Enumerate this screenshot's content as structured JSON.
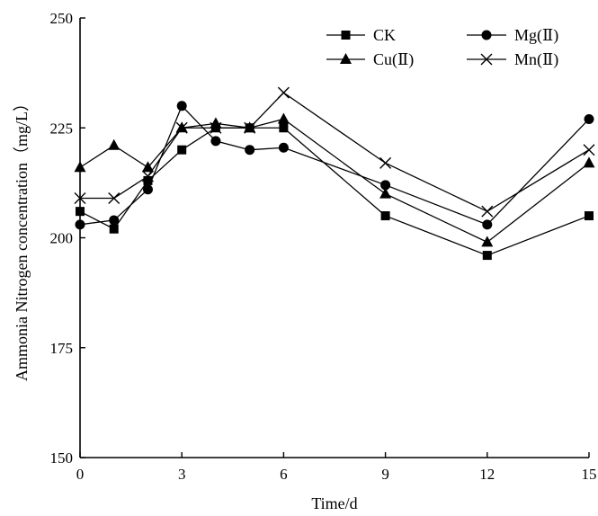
{
  "chart_data": {
    "type": "line",
    "title": "",
    "xlabel": "Time/d",
    "ylabel": "Ammonia Nitrogen concentration（mg/L）",
    "x": [
      0,
      1,
      2,
      3,
      4,
      5,
      6,
      9,
      12,
      15
    ],
    "xticks": [
      0,
      3,
      6,
      9,
      12,
      15
    ],
    "yticks": [
      150,
      175,
      200,
      225,
      250
    ],
    "xlim": [
      0,
      15
    ],
    "ylim": [
      150,
      250
    ],
    "grid": false,
    "legend_position": "top-right",
    "series": [
      {
        "name": "CK",
        "marker": "square",
        "values": [
          206,
          202,
          213,
          220,
          225,
          225,
          225,
          205,
          196,
          205
        ]
      },
      {
        "name": "Mg(Ⅱ)",
        "marker": "circle",
        "values": [
          203,
          204,
          211,
          230,
          222,
          220,
          220.5,
          212,
          203,
          227
        ]
      },
      {
        "name": "Cu(Ⅱ)",
        "marker": "triangle",
        "values": [
          216,
          221,
          216,
          225,
          226,
          225,
          227,
          210,
          199,
          217
        ]
      },
      {
        "name": "Mn(Ⅱ)",
        "marker": "x",
        "values": [
          209,
          209,
          214,
          225,
          225,
          225,
          233,
          217,
          206,
          220
        ]
      }
    ]
  }
}
